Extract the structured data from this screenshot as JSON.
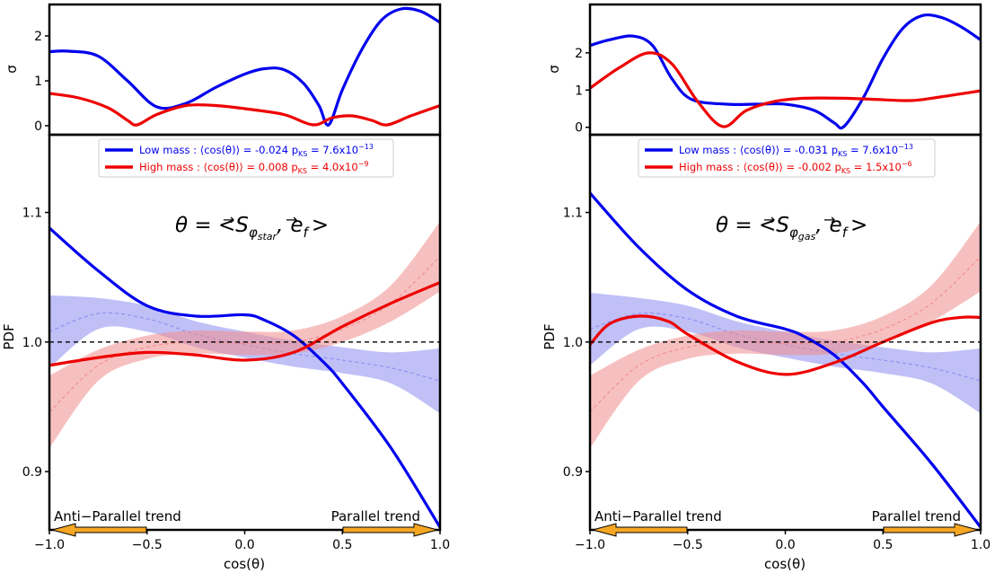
{
  "chart_data": [
    {
      "type": "line",
      "theta_label": "θ = <S⃗φstar, e⃗f>",
      "theta_parts": {
        "lhs": "θ = <",
        "vec": "S",
        "sub_main": "φ",
        "sub_sub": "star",
        "comma": ",",
        "vec2": "e",
        "sub2": "f",
        "close": ">"
      },
      "xlabel": "cos(θ)",
      "ylabel": "PDF",
      "xlim": [
        -1.0,
        1.0
      ],
      "ylim": [
        0.855,
        1.16
      ],
      "xticks": [
        -1.0,
        -0.5,
        0.0,
        0.5,
        1.0
      ],
      "xtick_labels": [
        "−1.0",
        "−0.5",
        "0.0",
        "0.5",
        "1.0"
      ],
      "yticks": [
        0.9,
        1.0,
        1.1
      ],
      "ytick_labels": [
        "0.9",
        "1.0",
        "1.1"
      ],
      "reference_line": 1.0,
      "legend": [
        {
          "label": "Low mass :  ⟨cos(θ)⟩ = -0.024   p",
          "sub": "KS",
          "tail": " = 7.6x10",
          "exp": "−13",
          "color": "#0000ee"
        },
        {
          "label": "High mass :  ⟨cos(θ)⟩ = 0.008   p",
          "sub": "KS",
          "tail": " = 4.0x10",
          "exp": "−9",
          "color": "#ee0000"
        }
      ],
      "trend_labels": {
        "left": "Anti−Parallel trend",
        "right": "Parallel trend"
      },
      "series": [
        {
          "name": "Low mass",
          "color": "#0000ee",
          "x": [
            -1.0,
            -0.75,
            -0.5,
            -0.25,
            0.0,
            0.1,
            0.25,
            0.4,
            0.5,
            0.75,
            1.0
          ],
          "values": [
            1.088,
            1.055,
            1.028,
            1.02,
            1.021,
            1.017,
            1.005,
            0.985,
            0.968,
            0.918,
            0.857
          ]
        },
        {
          "name": "High mass",
          "color": "#ee0000",
          "x": [
            -1.0,
            -0.75,
            -0.5,
            -0.25,
            0.0,
            0.25,
            0.5,
            0.75,
            1.0
          ],
          "values": [
            0.982,
            0.988,
            0.992,
            0.99,
            0.986,
            0.992,
            1.012,
            1.03,
            1.046
          ]
        },
        {
          "name": "Low mass random",
          "color": "#8c8cf0",
          "x": [
            -1.0,
            -0.75,
            -0.5,
            -0.25,
            0.0,
            0.25,
            0.5,
            0.75,
            1.0
          ],
          "values": [
            1.008,
            1.022,
            1.018,
            1.006,
            0.998,
            0.991,
            0.986,
            0.98,
            0.97
          ],
          "band": [
            0.028,
            0.012,
            0.01,
            0.01,
            0.01,
            0.01,
            0.01,
            0.012,
            0.025
          ]
        },
        {
          "name": "High mass random",
          "color": "#f08c8c",
          "x": [
            -1.0,
            -0.75,
            -0.5,
            -0.25,
            0.0,
            0.25,
            0.5,
            0.75,
            1.0
          ],
          "values": [
            0.946,
            0.982,
            0.996,
            1.0,
            0.999,
            1.0,
            1.01,
            1.03,
            1.066
          ],
          "band": [
            0.028,
            0.012,
            0.009,
            0.009,
            0.009,
            0.009,
            0.01,
            0.014,
            0.027
          ]
        }
      ],
      "sigma_panel": {
        "ylabel": "σ",
        "ylim": [
          -0.2,
          2.7
        ],
        "yticks": [
          0,
          1,
          2
        ],
        "ytick_labels": [
          "0",
          "1",
          "2"
        ],
        "series": [
          {
            "name": "Low mass",
            "color": "#0000ee",
            "x": [
              -1.0,
              -0.9,
              -0.75,
              -0.6,
              -0.45,
              -0.3,
              -0.15,
              0.0,
              0.1,
              0.2,
              0.3,
              0.38,
              0.43,
              0.5,
              0.6,
              0.7,
              0.8,
              0.9,
              1.0
            ],
            "values": [
              1.65,
              1.66,
              1.55,
              1.0,
              0.42,
              0.5,
              0.85,
              1.15,
              1.27,
              1.25,
              0.95,
              0.45,
              0.02,
              0.8,
              1.7,
              2.35,
              2.6,
              2.55,
              2.3
            ]
          },
          {
            "name": "High mass",
            "color": "#ee0000",
            "x": [
              -1.0,
              -0.85,
              -0.7,
              -0.6,
              -0.55,
              -0.45,
              -0.3,
              -0.15,
              0.0,
              0.2,
              0.35,
              0.45,
              0.55,
              0.65,
              0.73,
              0.85,
              1.0
            ],
            "values": [
              0.72,
              0.62,
              0.4,
              0.12,
              0.02,
              0.25,
              0.45,
              0.45,
              0.38,
              0.25,
              0.02,
              0.18,
              0.22,
              0.12,
              0.02,
              0.22,
              0.45
            ]
          }
        ]
      }
    },
    {
      "type": "line",
      "theta_label": "θ = <S⃗φgas, e⃗f>",
      "theta_parts": {
        "lhs": "θ = <",
        "vec": "S",
        "sub_main": "φ",
        "sub_sub": "gas",
        "comma": ",",
        "vec2": "e",
        "sub2": "f",
        "close": ">"
      },
      "xlabel": "cos(θ)",
      "ylabel": "PDF",
      "xlim": [
        -1.0,
        1.0
      ],
      "ylim": [
        0.855,
        1.16
      ],
      "xticks": [
        -1.0,
        -0.5,
        0.0,
        0.5,
        1.0
      ],
      "xtick_labels": [
        "−1.0",
        "−0.5",
        "0.0",
        "0.5",
        "1.0"
      ],
      "yticks": [
        0.9,
        1.0,
        1.1
      ],
      "ytick_labels": [
        "0.9",
        "1.0",
        "1.1"
      ],
      "reference_line": 1.0,
      "legend": [
        {
          "label": "Low mass :  ⟨cos(θ)⟩ = -0.031   p",
          "sub": "KS",
          "tail": " = 7.6x10",
          "exp": "−13",
          "color": "#0000ee"
        },
        {
          "label": "High mass :  ⟨cos(θ)⟩ = -0.002   p",
          "sub": "KS",
          "tail": " = 1.5x10",
          "exp": "−6",
          "color": "#ee0000"
        }
      ],
      "trend_labels": {
        "left": "Anti−Parallel trend",
        "right": "Parallel trend"
      },
      "series": [
        {
          "name": "Low mass",
          "color": "#0000ee",
          "x": [
            -1.0,
            -0.75,
            -0.5,
            -0.25,
            0.0,
            0.1,
            0.25,
            0.4,
            0.5,
            0.75,
            1.0
          ],
          "values": [
            1.115,
            1.073,
            1.04,
            1.02,
            1.01,
            1.004,
            0.99,
            0.968,
            0.95,
            0.906,
            0.857
          ]
        },
        {
          "name": "High mass",
          "color": "#ee0000",
          "x": [
            -1.0,
            -0.9,
            -0.75,
            -0.6,
            -0.5,
            -0.25,
            0.0,
            0.25,
            0.5,
            0.75,
            0.9,
            1.0
          ],
          "values": [
            0.998,
            1.014,
            1.02,
            1.016,
            1.006,
            0.985,
            0.975,
            0.984,
            1.0,
            1.015,
            1.019,
            1.019
          ]
        },
        {
          "name": "Low mass random",
          "color": "#8c8cf0",
          "x": [
            -1.0,
            -0.75,
            -0.5,
            -0.25,
            0.0,
            0.25,
            0.5,
            0.75,
            1.0
          ],
          "values": [
            1.01,
            1.022,
            1.018,
            1.006,
            0.998,
            0.991,
            0.986,
            0.98,
            0.97
          ],
          "band": [
            0.028,
            0.012,
            0.01,
            0.01,
            0.01,
            0.01,
            0.01,
            0.012,
            0.025
          ]
        },
        {
          "name": "High mass random",
          "color": "#f08c8c",
          "x": [
            -1.0,
            -0.75,
            -0.5,
            -0.25,
            0.0,
            0.25,
            0.5,
            0.75,
            1.0
          ],
          "values": [
            0.946,
            0.982,
            0.996,
            1.0,
            0.999,
            1.0,
            1.01,
            1.03,
            1.066
          ],
          "band": [
            0.028,
            0.012,
            0.009,
            0.009,
            0.009,
            0.009,
            0.01,
            0.014,
            0.027
          ]
        }
      ],
      "sigma_panel": {
        "ylabel": "σ",
        "ylim": [
          -0.2,
          3.3
        ],
        "yticks": [
          0,
          1,
          2
        ],
        "ytick_labels": [
          "0",
          "1",
          "2"
        ],
        "series": [
          {
            "name": "Low mass",
            "color": "#0000ee",
            "x": [
              -1.0,
              -0.9,
              -0.78,
              -0.68,
              -0.58,
              -0.48,
              -0.3,
              -0.15,
              0.0,
              0.15,
              0.25,
              0.3,
              0.4,
              0.5,
              0.6,
              0.7,
              0.8,
              0.9,
              1.0
            ],
            "values": [
              2.2,
              2.35,
              2.45,
              2.2,
              1.3,
              0.75,
              0.62,
              0.62,
              0.62,
              0.45,
              0.12,
              0.02,
              0.8,
              1.85,
              2.65,
              3.0,
              2.95,
              2.7,
              2.35
            ]
          },
          {
            "name": "High mass",
            "color": "#ee0000",
            "x": [
              -1.0,
              -0.85,
              -0.7,
              -0.58,
              -0.45,
              -0.32,
              -0.2,
              -0.05,
              0.1,
              0.3,
              0.5,
              0.65,
              0.8,
              1.0
            ],
            "values": [
              1.05,
              1.6,
              2.0,
              1.7,
              0.7,
              0.02,
              0.45,
              0.7,
              0.78,
              0.78,
              0.74,
              0.72,
              0.82,
              0.98
            ]
          }
        ]
      }
    }
  ]
}
